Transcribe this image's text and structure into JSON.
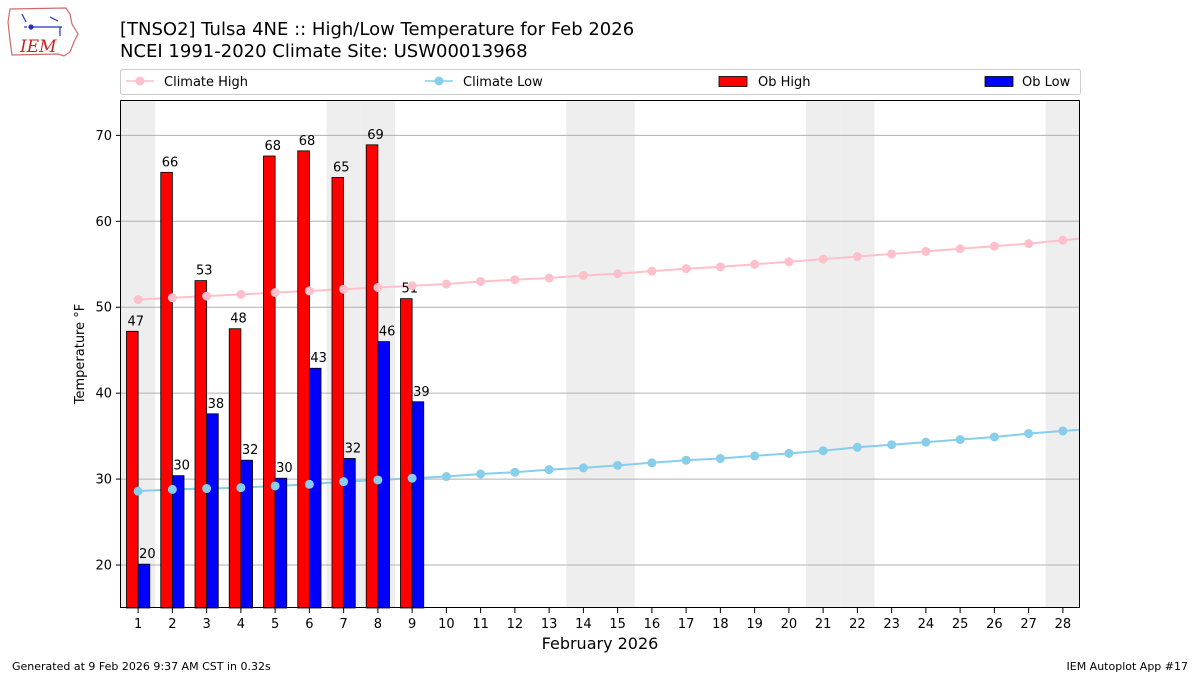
{
  "header": {
    "title_line1": "[TNSO2] Tulsa 4NE :: High/Low Temperature for Feb 2026",
    "title_line2": "NCEI 1991-2020 Climate Site: USW00013968",
    "logo_text": "IEM"
  },
  "footer": {
    "generated": "Generated at 9 Feb 2026 9:37 AM CST in 0.32s",
    "app": "IEM Autoplot App #17"
  },
  "colors": {
    "climate_high": "#ffc0cb",
    "climate_low": "#87ceeb",
    "ob_high": "#ff0000",
    "ob_low": "#0000ff",
    "weekend_shade": "#eeeeee",
    "grid": "#b0b0b0"
  },
  "chart_data": {
    "type": "bar",
    "xlabel": "February 2026",
    "ylabel": "Temperature °F",
    "ylim": [
      15,
      74
    ],
    "yticks": [
      20,
      30,
      40,
      50,
      60,
      70
    ],
    "xlim": [
      0.5,
      28.5
    ],
    "days": [
      1,
      2,
      3,
      4,
      5,
      6,
      7,
      8,
      9,
      10,
      11,
      12,
      13,
      14,
      15,
      16,
      17,
      18,
      19,
      20,
      21,
      22,
      23,
      24,
      25,
      26,
      27,
      28
    ],
    "weekend_days": [
      1,
      7,
      8,
      14,
      15,
      21,
      22,
      28
    ],
    "grid": "horizontal",
    "legend": {
      "position": "top",
      "entries": [
        "Climate High",
        "Climate Low",
        "Ob High",
        "Ob Low"
      ]
    },
    "series": [
      {
        "name": "Climate High",
        "kind": "line",
        "x": [
          1,
          2,
          3,
          4,
          5,
          6,
          7,
          8,
          9,
          10,
          11,
          12,
          13,
          14,
          15,
          16,
          17,
          18,
          19,
          20,
          21,
          22,
          23,
          24,
          25,
          26,
          27,
          28
        ],
        "values": [
          50.9,
          51.1,
          51.3,
          51.5,
          51.7,
          51.9,
          52.1,
          52.3,
          52.5,
          52.7,
          53.0,
          53.2,
          53.4,
          53.7,
          53.9,
          54.2,
          54.5,
          54.7,
          55.0,
          55.3,
          55.6,
          55.9,
          56.2,
          56.5,
          56.8,
          57.1,
          57.4,
          57.8
        ]
      },
      {
        "name": "Climate Low",
        "kind": "line",
        "x": [
          1,
          2,
          3,
          4,
          5,
          6,
          7,
          8,
          9,
          10,
          11,
          12,
          13,
          14,
          15,
          16,
          17,
          18,
          19,
          20,
          21,
          22,
          23,
          24,
          25,
          26,
          27,
          28
        ],
        "values": [
          28.6,
          28.8,
          28.9,
          29.0,
          29.2,
          29.4,
          29.7,
          29.9,
          30.1,
          30.3,
          30.6,
          30.8,
          31.1,
          31.3,
          31.6,
          31.9,
          32.2,
          32.4,
          32.7,
          33.0,
          33.3,
          33.7,
          34.0,
          34.3,
          34.6,
          34.9,
          35.3,
          35.6
        ]
      },
      {
        "name": "Ob High",
        "kind": "bar",
        "x": [
          1,
          2,
          3,
          4,
          5,
          6,
          7,
          8,
          9
        ],
        "values": [
          47.2,
          65.7,
          53.1,
          47.5,
          67.6,
          68.2,
          65.1,
          68.9,
          51.0
        ],
        "labels": [
          "47",
          "66",
          "53",
          "48",
          "68",
          "68",
          "65",
          "69",
          "51"
        ]
      },
      {
        "name": "Ob Low",
        "kind": "bar",
        "x": [
          1,
          2,
          3,
          4,
          5,
          6,
          7,
          8,
          9
        ],
        "values": [
          20.1,
          30.4,
          37.6,
          32.2,
          30.1,
          42.9,
          32.4,
          46.0,
          39.0
        ],
        "labels": [
          "20",
          "30",
          "38",
          "32",
          "30",
          "43",
          "32",
          "46",
          "39"
        ]
      }
    ]
  }
}
